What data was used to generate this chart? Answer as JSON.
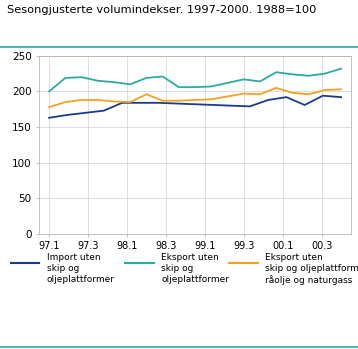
{
  "title": "Sesongjusterte volumindekser. 1997-2000. 1988=100",
  "x_labels": [
    "97.1",
    "97.3",
    "98.1",
    "98.3",
    "99.1",
    "99.3",
    "00.1",
    "00.3"
  ],
  "import_uten": [
    163,
    167,
    170,
    173,
    184,
    184,
    184,
    183,
    182,
    181,
    180,
    179,
    188,
    192,
    181,
    194,
    192
  ],
  "eksport_uten": [
    200,
    219,
    220,
    215,
    213,
    210,
    219,
    221,
    206,
    206,
    207,
    212,
    217,
    214,
    227,
    224,
    222,
    225,
    232
  ],
  "eksport_uten_olje": [
    178,
    185,
    188,
    188,
    186,
    185,
    196,
    187,
    187,
    188,
    189,
    193,
    197,
    196,
    205,
    198,
    196,
    202,
    203
  ],
  "colors": {
    "import_uten": "#1a3a8a",
    "eksport_uten": "#2aaba0",
    "eksport_uten_olje": "#f5a020"
  },
  "ylim": [
    0,
    250
  ],
  "yticks": [
    0,
    50,
    100,
    150,
    200,
    250
  ],
  "legend": [
    "Import uten\nskip og\noljeplattformer",
    "Eksport uten\nskip og\noljeplattformer",
    "Eksport uten\nskip og oljeplattformer,\nråolje og naturgass"
  ],
  "background_color": "#ffffff",
  "grid_color": "#d0d0d0",
  "title_color": "#000000",
  "teal_line_color": "#2aaba0"
}
